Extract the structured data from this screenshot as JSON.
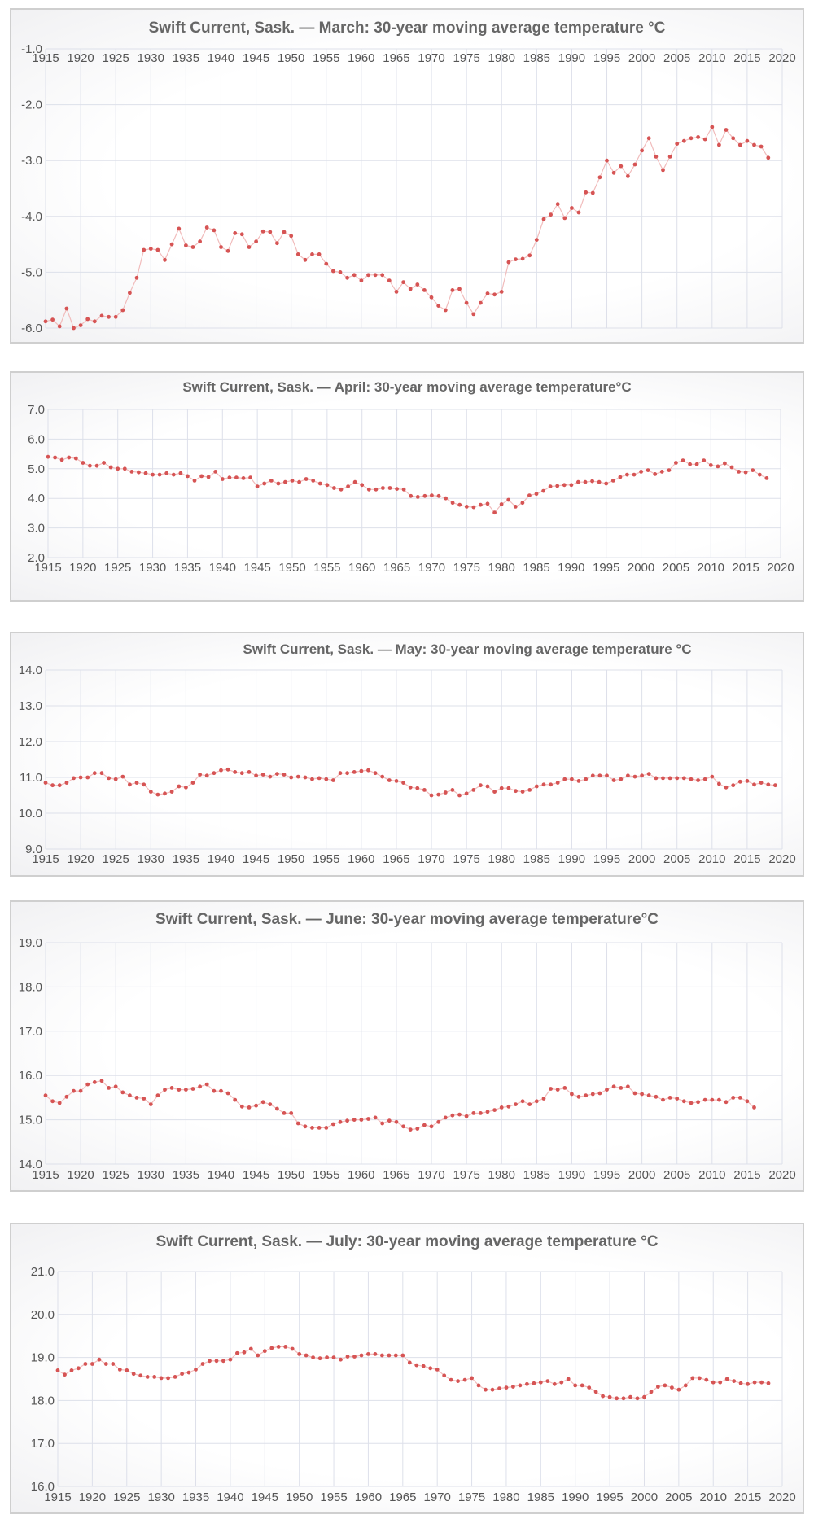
{
  "chart_data": [
    {
      "type": "line",
      "title": "Swift Current, Sask. — March: 30-year moving average temperature °C",
      "xlim": [
        1915,
        2020
      ],
      "ylim": [
        -6.0,
        -1.0
      ],
      "x_ticks": [
        "1915",
        "1920",
        "1925",
        "1930",
        "1935",
        "1940",
        "1945",
        "1950",
        "1955",
        "1960",
        "1965",
        "1970",
        "1975",
        "1980",
        "1985",
        "1990",
        "1995",
        "2000",
        "2005",
        "2010",
        "2015",
        "2020"
      ],
      "y_ticks": [
        "-1.0",
        "-2.0",
        "-3.0",
        "-4.0",
        "-5.0",
        "-6.0"
      ],
      "grid": true,
      "x_start": 1915,
      "values": [
        -5.88,
        -5.85,
        -5.97,
        -5.65,
        -6.0,
        -5.95,
        -5.84,
        -5.88,
        -5.78,
        -5.8,
        -5.8,
        -5.68,
        -5.37,
        -5.1,
        -4.6,
        -4.58,
        -4.6,
        -4.78,
        -4.5,
        -4.22,
        -4.52,
        -4.55,
        -4.45,
        -4.2,
        -4.25,
        -4.55,
        -4.62,
        -4.3,
        -4.32,
        -4.55,
        -4.45,
        -4.27,
        -4.28,
        -4.48,
        -4.28,
        -4.35,
        -4.68,
        -4.78,
        -4.68,
        -4.68,
        -4.85,
        -4.98,
        -5.0,
        -5.1,
        -5.05,
        -5.15,
        -5.05,
        -5.05,
        -5.05,
        -5.15,
        -5.35,
        -5.18,
        -5.3,
        -5.22,
        -5.32,
        -5.45,
        -5.6,
        -5.68,
        -5.32,
        -5.3,
        -5.55,
        -5.75,
        -5.55,
        -5.38,
        -5.4,
        -5.35,
        -4.82,
        -4.77,
        -4.76,
        -4.7,
        -4.42,
        -4.05,
        -3.97,
        -3.78,
        -4.03,
        -3.85,
        -3.93,
        -3.57,
        -3.58,
        -3.3,
        -3.0,
        -3.22,
        -3.1,
        -3.28,
        -3.07,
        -2.82,
        -2.6,
        -2.93,
        -3.17,
        -2.93,
        -2.7,
        -2.65,
        -2.6,
        -2.58,
        -2.62,
        -2.4,
        -2.72,
        -2.45,
        -2.6,
        -2.72,
        -2.65,
        -2.72,
        -2.75,
        -2.95
      ]
    },
    {
      "type": "line",
      "title": "Swift Current, Sask. — April: 30-year moving average temperature°C",
      "xlim": [
        1915,
        2020
      ],
      "ylim": [
        2.0,
        7.0
      ],
      "x_ticks": [
        "1915",
        "1920",
        "1925",
        "1930",
        "1935",
        "1940",
        "1945",
        "1950",
        "1955",
        "1960",
        "1965",
        "1970",
        "1975",
        "1980",
        "1985",
        "1990",
        "1995",
        "2000",
        "2005",
        "2010",
        "2015",
        "2020"
      ],
      "y_ticks": [
        "7.0",
        "6.0",
        "5.0",
        "4.0",
        "3.0",
        "2.0"
      ],
      "grid": true,
      "x_start": 1915,
      "values": [
        5.4,
        5.38,
        5.3,
        5.38,
        5.35,
        5.2,
        5.1,
        5.1,
        5.2,
        5.05,
        5.0,
        5.0,
        4.9,
        4.88,
        4.85,
        4.8,
        4.8,
        4.85,
        4.8,
        4.85,
        4.75,
        4.6,
        4.75,
        4.72,
        4.9,
        4.65,
        4.7,
        4.7,
        4.68,
        4.7,
        4.4,
        4.5,
        4.6,
        4.5,
        4.55,
        4.6,
        4.55,
        4.65,
        4.6,
        4.5,
        4.45,
        4.35,
        4.3,
        4.4,
        4.55,
        4.45,
        4.3,
        4.3,
        4.35,
        4.35,
        4.32,
        4.3,
        4.08,
        4.05,
        4.08,
        4.1,
        4.08,
        4.0,
        3.85,
        3.78,
        3.72,
        3.7,
        3.78,
        3.82,
        3.52,
        3.8,
        3.95,
        3.72,
        3.85,
        4.1,
        4.15,
        4.25,
        4.4,
        4.42,
        4.45,
        4.45,
        4.55,
        4.55,
        4.58,
        4.55,
        4.5,
        4.6,
        4.72,
        4.8,
        4.8,
        4.9,
        4.95,
        4.82,
        4.9,
        4.95,
        5.2,
        5.28,
        5.15,
        5.15,
        5.28,
        5.12,
        5.08,
        5.18,
        5.05,
        4.9,
        4.88,
        4.95,
        4.8,
        4.68
      ]
    },
    {
      "type": "line",
      "title": "Swift Current, Sask. — May: 30-year moving average temperature °C",
      "xlim": [
        1915,
        2020
      ],
      "ylim": [
        9.0,
        14.0
      ],
      "x_ticks": [
        "1915",
        "1920",
        "1925",
        "1930",
        "1935",
        "1940",
        "1945",
        "1950",
        "1955",
        "1960",
        "1965",
        "1970",
        "1975",
        "1980",
        "1985",
        "1990",
        "1995",
        "2000",
        "2005",
        "2010",
        "2015",
        "2020"
      ],
      "y_ticks": [
        "14.0",
        "13.0",
        "12.0",
        "11.0",
        "10.0",
        "9.0"
      ],
      "grid": true,
      "x_start": 1915,
      "values": [
        10.85,
        10.78,
        10.78,
        10.85,
        10.98,
        11.0,
        11.0,
        11.12,
        11.12,
        10.98,
        10.95,
        11.02,
        10.8,
        10.85,
        10.8,
        10.6,
        10.52,
        10.55,
        10.6,
        10.75,
        10.72,
        10.85,
        11.08,
        11.05,
        11.12,
        11.2,
        11.22,
        11.15,
        11.12,
        11.15,
        11.05,
        11.08,
        11.02,
        11.1,
        11.08,
        11.0,
        11.02,
        11.0,
        10.95,
        10.98,
        10.95,
        10.92,
        11.12,
        11.12,
        11.15,
        11.18,
        11.2,
        11.12,
        11.02,
        10.92,
        10.9,
        10.85,
        10.72,
        10.7,
        10.65,
        10.5,
        10.52,
        10.58,
        10.65,
        10.5,
        10.55,
        10.65,
        10.78,
        10.75,
        10.6,
        10.7,
        10.7,
        10.62,
        10.6,
        10.65,
        10.75,
        10.8,
        10.8,
        10.85,
        10.95,
        10.95,
        10.9,
        10.95,
        11.05,
        11.05,
        11.05,
        10.92,
        10.95,
        11.05,
        11.02,
        11.05,
        11.1,
        10.98,
        10.98,
        10.98,
        10.98,
        10.98,
        10.95,
        10.92,
        10.95,
        11.02,
        10.82,
        10.72,
        10.78,
        10.88,
        10.9,
        10.8,
        10.85,
        10.8,
        10.78
      ]
    },
    {
      "type": "line",
      "title": "Swift Current, Sask. — June: 30-year moving average temperature°C",
      "xlim": [
        1915,
        2020
      ],
      "ylim": [
        14.0,
        19.0
      ],
      "x_ticks": [
        "1915",
        "1920",
        "1925",
        "1930",
        "1935",
        "1940",
        "1945",
        "1950",
        "1955",
        "1960",
        "1965",
        "1970",
        "1975",
        "1980",
        "1985",
        "1990",
        "1995",
        "2000",
        "2005",
        "2010",
        "2015",
        "2020"
      ],
      "y_ticks": [
        "19.0",
        "18.0",
        "17.0",
        "16.0",
        "15.0",
        "14.0"
      ],
      "grid": true,
      "x_start": 1915,
      "values": [
        15.55,
        15.42,
        15.38,
        15.52,
        15.65,
        15.65,
        15.8,
        15.85,
        15.88,
        15.72,
        15.75,
        15.62,
        15.55,
        15.5,
        15.48,
        15.35,
        15.55,
        15.68,
        15.72,
        15.68,
        15.68,
        15.7,
        15.75,
        15.8,
        15.65,
        15.65,
        15.6,
        15.45,
        15.3,
        15.28,
        15.32,
        15.4,
        15.35,
        15.25,
        15.15,
        15.15,
        14.92,
        14.85,
        14.82,
        14.82,
        14.82,
        14.9,
        14.95,
        14.98,
        15.0,
        15.0,
        15.02,
        15.05,
        14.92,
        14.98,
        14.95,
        14.85,
        14.78,
        14.8,
        14.88,
        14.85,
        14.95,
        15.05,
        15.1,
        15.12,
        15.08,
        15.15,
        15.15,
        15.18,
        15.22,
        15.28,
        15.3,
        15.35,
        15.42,
        15.35,
        15.42,
        15.48,
        15.7,
        15.68,
        15.72,
        15.58,
        15.52,
        15.55,
        15.58,
        15.6,
        15.68,
        15.75,
        15.72,
        15.75,
        15.6,
        15.58,
        15.55,
        15.52,
        15.45,
        15.5,
        15.48,
        15.42,
        15.38,
        15.4,
        15.45,
        15.45,
        15.45,
        15.4,
        15.5,
        15.5,
        15.42,
        15.28
      ]
    },
    {
      "type": "line",
      "title": "Swift Current, Sask. — July: 30-year moving average temperature °C",
      "xlim": [
        1915,
        2020
      ],
      "ylim": [
        16.0,
        21.0
      ],
      "x_ticks": [
        "1915",
        "1920",
        "1925",
        "1930",
        "1935",
        "1940",
        "1945",
        "1950",
        "1955",
        "1960",
        "1965",
        "1970",
        "1975",
        "1980",
        "1985",
        "1990",
        "1995",
        "2000",
        "2005",
        "2010",
        "2015",
        "2020"
      ],
      "y_ticks": [
        "21.0",
        "20.0",
        "19.0",
        "18.0",
        "17.0",
        "16.0"
      ],
      "grid": true,
      "x_start": 1915,
      "values": [
        18.7,
        18.6,
        18.7,
        18.75,
        18.85,
        18.85,
        18.95,
        18.85,
        18.85,
        18.72,
        18.7,
        18.62,
        18.58,
        18.55,
        18.55,
        18.52,
        18.52,
        18.55,
        18.62,
        18.65,
        18.72,
        18.85,
        18.92,
        18.92,
        18.92,
        18.95,
        19.1,
        19.12,
        19.2,
        19.05,
        19.15,
        19.22,
        19.25,
        19.25,
        19.2,
        19.08,
        19.05,
        19.0,
        18.98,
        19.0,
        19.0,
        18.95,
        19.02,
        19.02,
        19.05,
        19.08,
        19.08,
        19.05,
        19.05,
        19.05,
        19.05,
        18.88,
        18.82,
        18.8,
        18.75,
        18.72,
        18.58,
        18.48,
        18.45,
        18.48,
        18.52,
        18.35,
        18.25,
        18.25,
        18.28,
        18.3,
        18.32,
        18.35,
        18.38,
        18.4,
        18.42,
        18.45,
        18.38,
        18.42,
        18.5,
        18.35,
        18.35,
        18.3,
        18.2,
        18.1,
        18.08,
        18.05,
        18.05,
        18.08,
        18.05,
        18.08,
        18.2,
        18.32,
        18.35,
        18.3,
        18.25,
        18.35,
        18.52,
        18.52,
        18.48,
        18.42,
        18.42,
        18.5,
        18.45,
        18.4,
        18.38,
        18.42,
        18.42,
        18.4
      ]
    }
  ]
}
